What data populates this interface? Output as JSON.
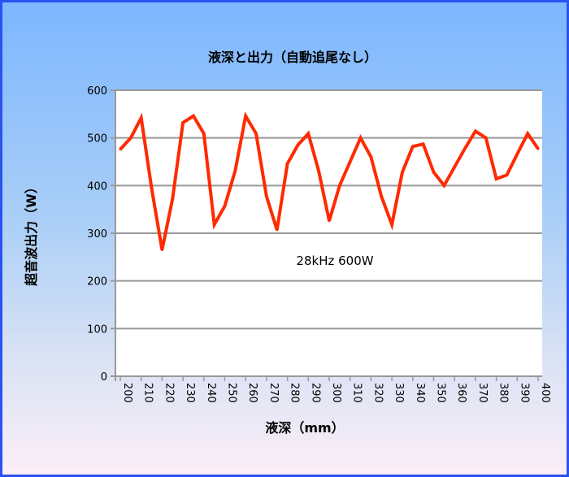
{
  "chart_data": {
    "type": "line",
    "title": "液深と出力（自動追尾なし）",
    "xlabel": "液深（mm）",
    "ylabel": "超音波出力（W）",
    "annotation": "28kHz 600W",
    "ylim": [
      0,
      600
    ],
    "yticks": [
      "0",
      "100",
      "200",
      "300",
      "400",
      "500",
      "600"
    ],
    "xlim": [
      200,
      400
    ],
    "xticks": [
      "200",
      "210",
      "220",
      "230",
      "240",
      "250",
      "260",
      "270",
      "280",
      "290",
      "300",
      "310",
      "320",
      "330",
      "340",
      "350",
      "360",
      "370",
      "380",
      "390",
      "400"
    ],
    "grid": true,
    "legend": "none",
    "line_color": "#ff2a00",
    "series": [
      {
        "name": "28kHz 600W",
        "x": [
          200,
          205,
          210,
          215,
          220,
          225,
          230,
          235,
          240,
          245,
          250,
          255,
          260,
          265,
          270,
          275,
          280,
          285,
          290,
          295,
          300,
          305,
          310,
          315,
          320,
          325,
          330,
          335,
          340,
          345,
          350,
          355,
          360,
          365,
          370,
          375,
          380,
          385,
          390,
          395,
          400
        ],
        "y": [
          476,
          500,
          542,
          394,
          265,
          372,
          532,
          546,
          509,
          318,
          357,
          431,
          546,
          509,
          377,
          307,
          446,
          485,
          509,
          430,
          326,
          400,
          450,
          500,
          460,
          377,
          318,
          428,
          482,
          487,
          428,
          400,
          439,
          478,
          514,
          500,
          414,
          422,
          466,
          509,
          477
        ]
      }
    ]
  }
}
